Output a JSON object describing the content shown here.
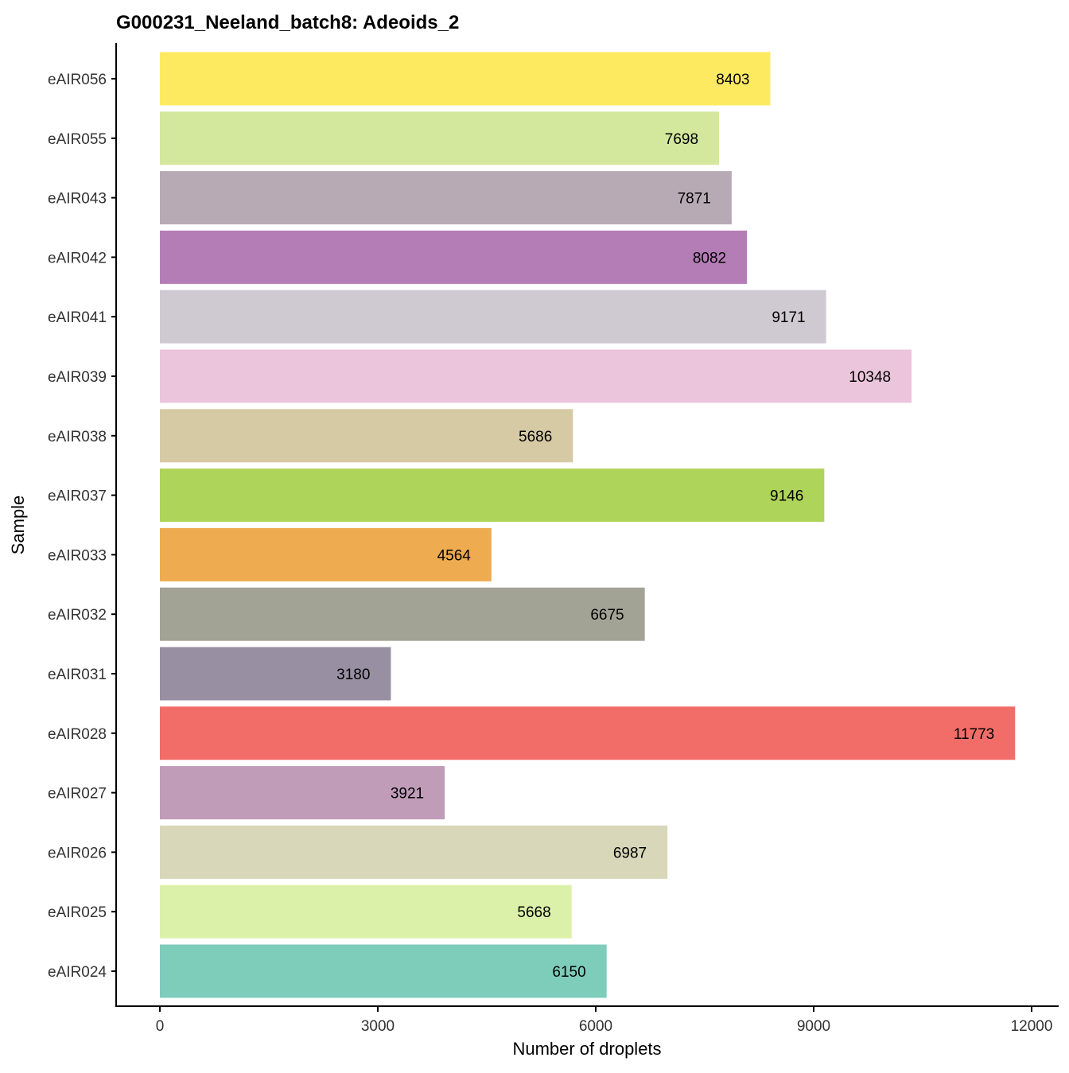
{
  "chart_data": {
    "type": "bar",
    "orientation": "horizontal",
    "title": "G000231_Neeland_batch8: Adeoids_2",
    "xlabel": "Number of droplets",
    "ylabel": "Sample",
    "xlim": [
      -2000,
      12400
    ],
    "xticks": [
      0,
      3000,
      6000,
      9000,
      12000
    ],
    "xtick_labels": [
      "0",
      "3000",
      "6000",
      "9000",
      "12000"
    ],
    "grid": false,
    "legend": "none",
    "categories": [
      "eAIR056",
      "eAIR055",
      "eAIR043",
      "eAIR042",
      "eAIR041",
      "eAIR039",
      "eAIR038",
      "eAIR037",
      "eAIR033",
      "eAIR032",
      "eAIR031",
      "eAIR028",
      "eAIR027",
      "eAIR026",
      "eAIR025",
      "eAIR024"
    ],
    "values": [
      8403,
      7698,
      7871,
      8082,
      9171,
      10348,
      5686,
      9146,
      4564,
      6675,
      3180,
      11773,
      3921,
      6987,
      5668,
      6150
    ],
    "value_labels": [
      "8403",
      "7698",
      "7871",
      "8082",
      "9171",
      "10348",
      "5686",
      "9146",
      "4564",
      "6675",
      "3180",
      "11773",
      "3921",
      "6987",
      "5668",
      "6150"
    ],
    "colors": [
      "#FEEA60",
      "#D3E89C",
      "#B8AAB5",
      "#B47DB6",
      "#CFCAD1",
      "#EBC5DB",
      "#D6CAA4",
      "#AFD45A",
      "#EEAB50",
      "#A3A395",
      "#988FA3",
      "#F26D68",
      "#C09CB9",
      "#D8D7B9",
      "#DBF1A9",
      "#7ECCBA"
    ]
  }
}
